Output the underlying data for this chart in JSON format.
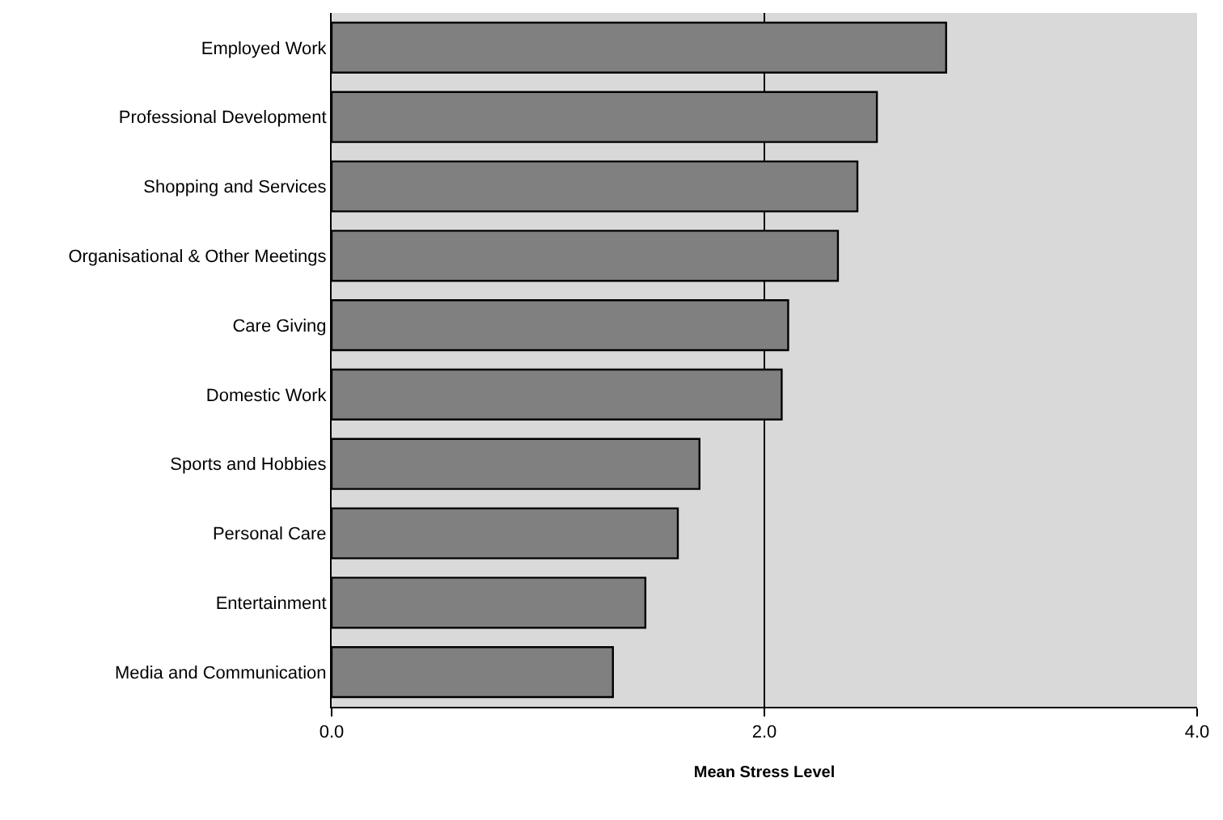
{
  "chart_data": {
    "type": "bar",
    "orientation": "horizontal",
    "xlabel": "Mean Stress Level",
    "categories": [
      "Employed Work",
      "Professional Development",
      "Shopping and Services",
      "Organisational & Other Meetings",
      "Care Giving",
      "Domestic Work",
      "Sports and Hobbies",
      "Personal Care",
      "Entertainment",
      "Media and Communication"
    ],
    "values": [
      2.84,
      2.52,
      2.43,
      2.34,
      2.11,
      2.08,
      1.7,
      1.6,
      1.45,
      1.3
    ],
    "color": "#808080",
    "xlim": [
      0,
      4
    ],
    "xticks": [
      {
        "value": 0,
        "label": "0.0"
      },
      {
        "value": 2,
        "label": "2.0"
      },
      {
        "value": 4,
        "label": "4.0"
      }
    ],
    "grid": "x",
    "legend": false
  }
}
